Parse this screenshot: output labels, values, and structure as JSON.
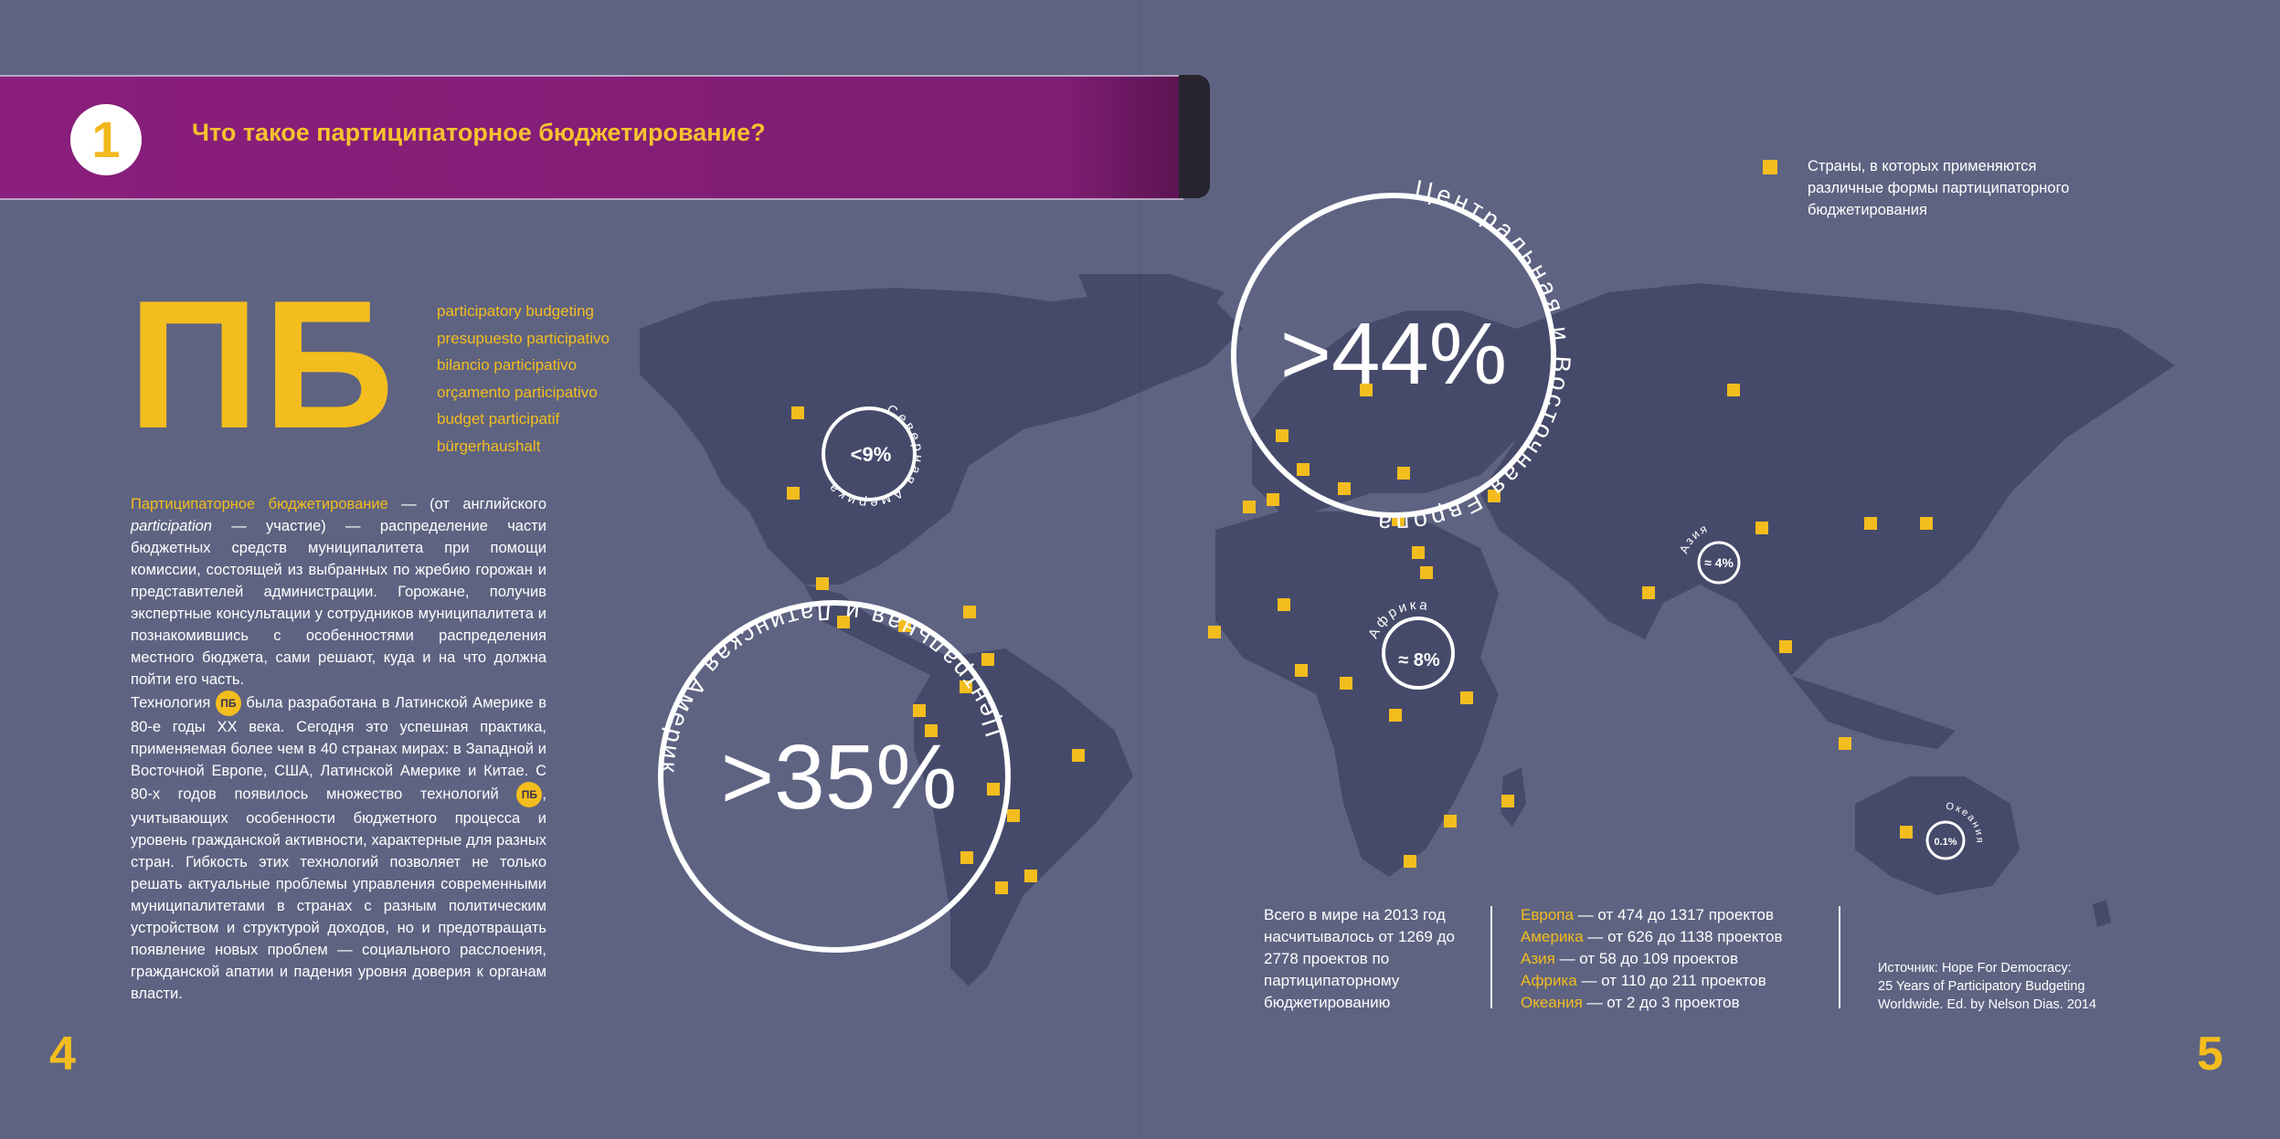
{
  "header": {
    "chapter_number": "1",
    "title": "Что такое партиципаторное бюджетирование?"
  },
  "left": {
    "abbr": "ПБ",
    "terms": [
      "participatory budgeting",
      "presupuesto participativo",
      "bilancio participativo",
      "orçamento participativo",
      "budget participatif",
      "bürgerhaushalt"
    ],
    "para1_highlight": "Партиципаторное бюджетирование",
    "para1_text_a": " — (от английского ",
    "para1_italic": "participation",
    "para1_text_b": " — участие) — распределение части бюджетных средств муниципалитета при помощи комиссии, состоящей из выбранных по жребию горожан и представителей администрации. Горожане, получив экспертные консультации у сотрудников муниципалитета и познакомившись с особенностями распределения местного бюджета, сами решают, куда и на что должна пойти его часть.",
    "para2_a": "Технология ",
    "badge": "ПБ",
    "para2_b": " была разработана в Латинской Америке в 80-е годы XX века. Сегодня это успешная практика, применяемая более чем в 40 странах мирах: в Западной и Восточной Европе, США, Латинской Америке и Китае. С 80-х годов появилось множество технологий ",
    "para2_c": ", учитывающих особенности бюджетного процесса и уровень гражданской активности, характерные для разных стран. Гибкость этих технологий позволяет не только решать актуальные проблемы управления современными муниципалитетами в странах с разным политическим устройством и структурой доходов, но и предотвращать появление новых проблем — социального расслоения, гражданской апатии и падения уровня доверия к органам власти.",
    "page_number": "4"
  },
  "map": {
    "circles": [
      {
        "label": "Центральная и Восточная Европа",
        "value": ">44%"
      },
      {
        "label": "Центральная и Латинская Америка",
        "value": ">35%"
      },
      {
        "label": "Северная Америка",
        "value": "<9%"
      },
      {
        "label": "Африка",
        "value": "≈ 8%"
      },
      {
        "label": "Азия",
        "value": "≈ 4%"
      },
      {
        "label": "Океания",
        "value": "0.1%"
      }
    ],
    "marker_color": "#f3bd1e",
    "land_color": "#464a6a"
  },
  "legend": {
    "text": "Страны, в которых применяются различные формы партиципаторного бюджетирования"
  },
  "stats": {
    "total": "Всего в мире на 2013 год насчитывалось от 1269 до 2778 проектов по партиципаторному бюджетированию",
    "regions": [
      {
        "name": "Европа",
        "range": " — от 474 до 1317 проектов"
      },
      {
        "name": "Америка",
        "range": " — от 626 до 1138 проектов"
      },
      {
        "name": "Азия",
        "range": " — от 58 до 109 проектов"
      },
      {
        "name": "Африка",
        "range": " — от 110 до 211 проектов"
      },
      {
        "name": "Океания",
        "range": " — от 2 до 3 проектов"
      }
    ]
  },
  "source": {
    "line1": "Источник: Hope For Democracy:",
    "line2": "25 Years of Participatory Budgeting",
    "line3": "Worldwide. Ed. by Nelson Dias.  2014"
  },
  "right_page_number": "5"
}
